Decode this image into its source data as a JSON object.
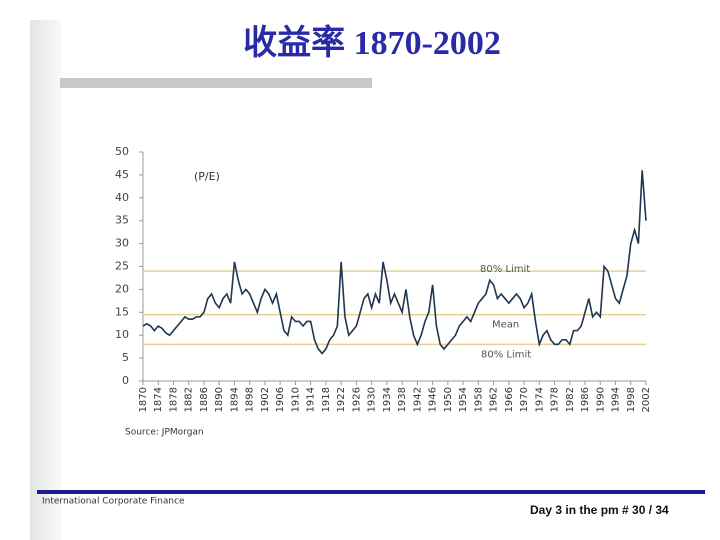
{
  "slide": {
    "title": "收益率 1870-2002",
    "footer_left": "International Corporate Finance",
    "footer_right": "Day 3 in the pm # 30 / 34"
  },
  "chart_data": {
    "type": "line",
    "annotation": "(P/E)",
    "source": "Source: JPMorgan",
    "x": [
      1870,
      1871,
      1872,
      1873,
      1874,
      1875,
      1876,
      1877,
      1878,
      1879,
      1880,
      1881,
      1882,
      1883,
      1884,
      1885,
      1886,
      1887,
      1888,
      1889,
      1890,
      1891,
      1892,
      1893,
      1894,
      1895,
      1896,
      1897,
      1898,
      1899,
      1900,
      1901,
      1902,
      1903,
      1904,
      1905,
      1906,
      1907,
      1908,
      1909,
      1910,
      1911,
      1912,
      1913,
      1914,
      1915,
      1916,
      1917,
      1918,
      1919,
      1920,
      1921,
      1922,
      1923,
      1924,
      1925,
      1926,
      1927,
      1928,
      1929,
      1930,
      1931,
      1932,
      1933,
      1934,
      1935,
      1936,
      1937,
      1938,
      1939,
      1940,
      1941,
      1942,
      1943,
      1944,
      1945,
      1946,
      1947,
      1948,
      1949,
      1950,
      1951,
      1952,
      1953,
      1954,
      1955,
      1956,
      1957,
      1958,
      1959,
      1960,
      1961,
      1962,
      1963,
      1964,
      1965,
      1966,
      1967,
      1968,
      1969,
      1970,
      1971,
      1972,
      1973,
      1974,
      1975,
      1976,
      1977,
      1978,
      1979,
      1980,
      1981,
      1982,
      1983,
      1984,
      1985,
      1986,
      1987,
      1988,
      1989,
      1990,
      1991,
      1992,
      1993,
      1994,
      1995,
      1996,
      1997,
      1998,
      1999,
      2000,
      2001,
      2002
    ],
    "series": [
      {
        "name": "P/E",
        "color": "#1f3550",
        "values": [
          12,
          12.5,
          12,
          11,
          12,
          11.5,
          10.5,
          10,
          11,
          12,
          13,
          14,
          13.5,
          13.5,
          14,
          14,
          15,
          18,
          19,
          17,
          16,
          18,
          19,
          17,
          26,
          22,
          19,
          20,
          19,
          17,
          15,
          18,
          20,
          19,
          17,
          19,
          15,
          11,
          10,
          14,
          13,
          13,
          12,
          13,
          13,
          9,
          7,
          6,
          7,
          9,
          10,
          12,
          26,
          14,
          10,
          11,
          12,
          15,
          18,
          19,
          16,
          19,
          17,
          26,
          22,
          17,
          19,
          17,
          15,
          20,
          14,
          10,
          8,
          10,
          13,
          15,
          21,
          12,
          8,
          7,
          8,
          9,
          10,
          12,
          13,
          14,
          13,
          15,
          17,
          18,
          19,
          22,
          21,
          18,
          19,
          18,
          17,
          18,
          19,
          18,
          16,
          17,
          19,
          13,
          8,
          10,
          11,
          9,
          8,
          8,
          9,
          9,
          8,
          11,
          11,
          12,
          15,
          18,
          14,
          15,
          14,
          25,
          24,
          21,
          18,
          17,
          20,
          23,
          30,
          33,
          30,
          46,
          35
        ]
      }
    ],
    "reference_lines": [
      {
        "label": "80% Limit",
        "value": 24,
        "color": "#e8cf96"
      },
      {
        "label": "Mean",
        "value": 14.5,
        "color": "#e8cf96"
      },
      {
        "label": "80% Limit",
        "value": 8,
        "color": "#e8cf96"
      }
    ],
    "xlim": [
      1870,
      2002
    ],
    "xticks": [
      1870,
      1874,
      1878,
      1882,
      1886,
      1890,
      1894,
      1898,
      1902,
      1906,
      1910,
      1914,
      1918,
      1922,
      1926,
      1930,
      1934,
      1938,
      1942,
      1946,
      1950,
      1954,
      1958,
      1962,
      1966,
      1970,
      1974,
      1978,
      1982,
      1986,
      1990,
      1994,
      1998,
      2002
    ],
    "ylim": [
      0,
      50
    ],
    "yticks": [
      0,
      5,
      10,
      15,
      20,
      25,
      30,
      35,
      40,
      45,
      50
    ],
    "grid": false
  }
}
